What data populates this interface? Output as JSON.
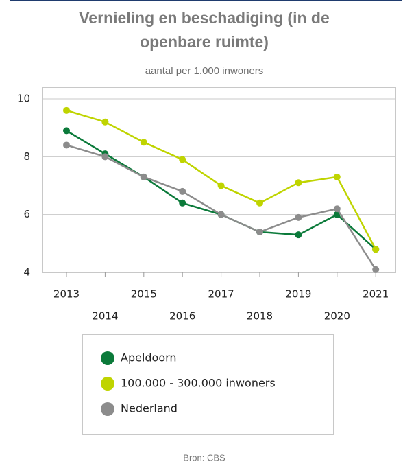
{
  "chart_data": {
    "type": "line",
    "title": [
      "Vernieling en beschadiging (in de",
      "openbare ruimte)"
    ],
    "subtitle": "aantal per 1.000 inwoners",
    "categories": [
      "2013",
      "2014",
      "2015",
      "2016",
      "2017",
      "2018",
      "2019",
      "2020",
      "2021"
    ],
    "series": [
      {
        "name": "Apeldoorn",
        "color": "#0b7a3a",
        "values": [
          8.9,
          8.1,
          7.3,
          6.4,
          6.0,
          5.4,
          5.3,
          6.0,
          4.8
        ]
      },
      {
        "name": "100.000 - 300.000 inwoners",
        "color": "#bfd400",
        "values": [
          9.6,
          9.2,
          8.5,
          7.9,
          7.0,
          6.4,
          7.1,
          7.3,
          4.8
        ]
      },
      {
        "name": "Nederland",
        "color": "#8c8c8c",
        "values": [
          8.4,
          8.0,
          7.3,
          6.8,
          6.0,
          5.4,
          5.9,
          6.2,
          4.1
        ]
      }
    ],
    "ylim": [
      4,
      10
    ],
    "yticks": [
      4,
      6,
      8,
      10
    ],
    "grid": true,
    "source": "Bron: CBS"
  }
}
